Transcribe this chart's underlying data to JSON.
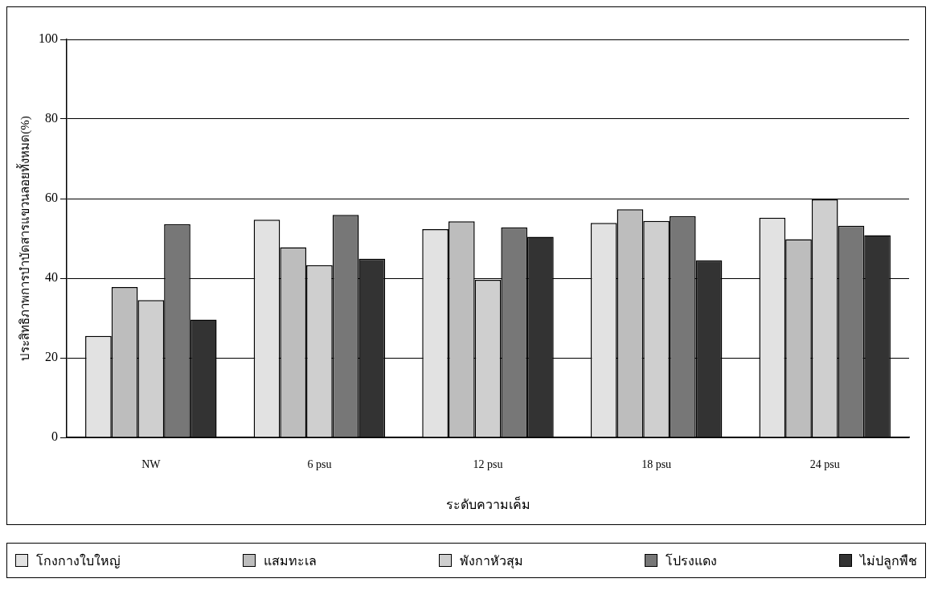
{
  "chart_data": {
    "type": "bar",
    "xlabel": "ระดับความเค็ม",
    "ylabel": "ประสิทธิภาพการบำบัดสารแขวนลอยทั้งหมด(%)",
    "categories": [
      "NW",
      "6 psu",
      "12 psu",
      "18 psu",
      "24 psu"
    ],
    "series": [
      {
        "name": "โกงกางใบใหญ่",
        "color": "#e2e2e2",
        "values": [
          25.5,
          54.7,
          52.3,
          53.9,
          55.2
        ]
      },
      {
        "name": "แสมทะเล",
        "color": "#bdbdbd",
        "values": [
          37.8,
          47.8,
          54.3,
          57.3,
          49.8
        ]
      },
      {
        "name": "พังกาหัวสุม",
        "color": "#cfcfcf",
        "values": [
          34.5,
          43.3,
          39.6,
          54.4,
          59.8
        ]
      },
      {
        "name": "โปรงแดง",
        "color": "#777777",
        "values": [
          53.6,
          55.9,
          52.8,
          55.6,
          53.2
        ]
      },
      {
        "name": "ไม่ปลูกพืช",
        "color": "#333333",
        "values": [
          29.6,
          44.9,
          50.4,
          44.5,
          50.8
        ]
      }
    ],
    "ylim": [
      0,
      100
    ],
    "yticks": [
      0,
      20,
      40,
      60,
      80,
      100
    ],
    "grid": "y",
    "legend": "bottom"
  }
}
